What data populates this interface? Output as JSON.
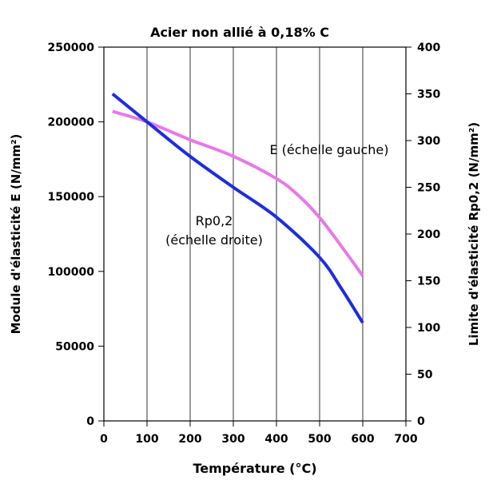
{
  "chart_data": {
    "type": "line",
    "title": "Acier non allié à 0,18% C",
    "xlabel": "Température (°C)",
    "ylabel_left": "Module d'élasticité E (N/mm²)",
    "ylabel_right": "Limite d'élasticité Rp0,2 (N/mm²)",
    "xlim": [
      0,
      700
    ],
    "ylim_left": [
      0,
      250000
    ],
    "ylim_right": [
      0,
      400
    ],
    "grid": "vertical",
    "x_ticks": [
      "0",
      "100",
      "200",
      "300",
      "400",
      "500",
      "600",
      "700"
    ],
    "y_ticks_left": [
      "0",
      "50000",
      "100000",
      "150000",
      "200000",
      "250000"
    ],
    "y_ticks_right": [
      "0",
      "50",
      "100",
      "150",
      "200",
      "250",
      "300",
      "350",
      "400"
    ],
    "series": [
      {
        "name": "E (échelle gauche)",
        "axis": "left",
        "color": "#e878e8",
        "x": [
          20,
          100,
          200,
          300,
          400,
          450,
          500,
          550,
          600
        ],
        "y": [
          207000,
          200000,
          188000,
          177000,
          162000,
          151000,
          136000,
          117000,
          97000
        ]
      },
      {
        "name": "Rp0,2\n(échelle droite)",
        "axis": "right",
        "color": "#1c2ee0",
        "x": [
          20,
          100,
          200,
          300,
          400,
          500,
          550,
          600
        ],
        "y": [
          350,
          320,
          283,
          250,
          218,
          175,
          142,
          105
        ]
      }
    ]
  }
}
